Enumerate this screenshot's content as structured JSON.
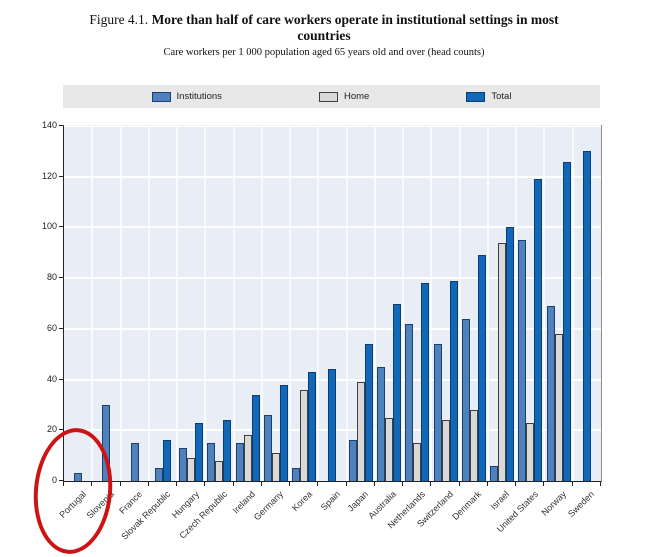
{
  "figure": {
    "label": "Figure 4.1.",
    "title": "More than half of care workers operate in institutional settings in most countries",
    "subtitle": "Care workers per 1 000 population aged 65 years old and over (head counts)"
  },
  "legend": [
    {
      "name": "Institutions",
      "color": "#4f81bd",
      "border": "#1c3f6e"
    },
    {
      "name": "Home",
      "color": "#d9d9d9",
      "border": "#3f3f3f"
    },
    {
      "name": "Total",
      "color": "#1268b8",
      "border": "#0b3d70"
    }
  ],
  "chart_data": {
    "type": "bar",
    "title": "Figure 4.1. More than half of care workers operate in institutional settings in most countries",
    "subtitle": "Care workers per 1 000 population aged 65 years old and over (head counts)",
    "categories": [
      "Portugal",
      "Slovenia",
      "France",
      "Slovak Republic",
      "Hungary",
      "Czech Republic",
      "Ireland",
      "Germany",
      "Korea",
      "Spain",
      "Japan",
      "Australia",
      "Netherlands",
      "Switzerland",
      "Denmark",
      "Israel",
      "United States",
      "Norway",
      "Sweden"
    ],
    "series": [
      {
        "name": "Institutions",
        "color": "#4f81bd",
        "border": "#1c3f6e",
        "values": [
          3,
          30,
          15,
          5,
          13,
          15,
          15,
          26,
          5,
          null,
          16,
          45,
          62,
          54,
          64,
          6,
          95,
          69,
          null
        ]
      },
      {
        "name": "Home",
        "color": "#d9d9d9",
        "border": "#3f3f3f",
        "values": [
          null,
          null,
          null,
          null,
          9,
          8,
          18,
          11,
          36,
          null,
          39,
          25,
          15,
          24,
          28,
          94,
          23,
          58,
          null
        ]
      },
      {
        "name": "Total",
        "color": "#1268b8",
        "border": "#0b3d70",
        "values": [
          null,
          null,
          null,
          16,
          23,
          24,
          34,
          38,
          43,
          44,
          54,
          70,
          78,
          79,
          89,
          100,
          119,
          126,
          130
        ]
      }
    ],
    "ylim": [
      0,
      140
    ],
    "ytick_step": 20,
    "grid": true,
    "legend_position": "top",
    "annotation": {
      "shape": "hand-drawn-ellipse",
      "color": "#cc1414",
      "target": "Portugal"
    }
  }
}
